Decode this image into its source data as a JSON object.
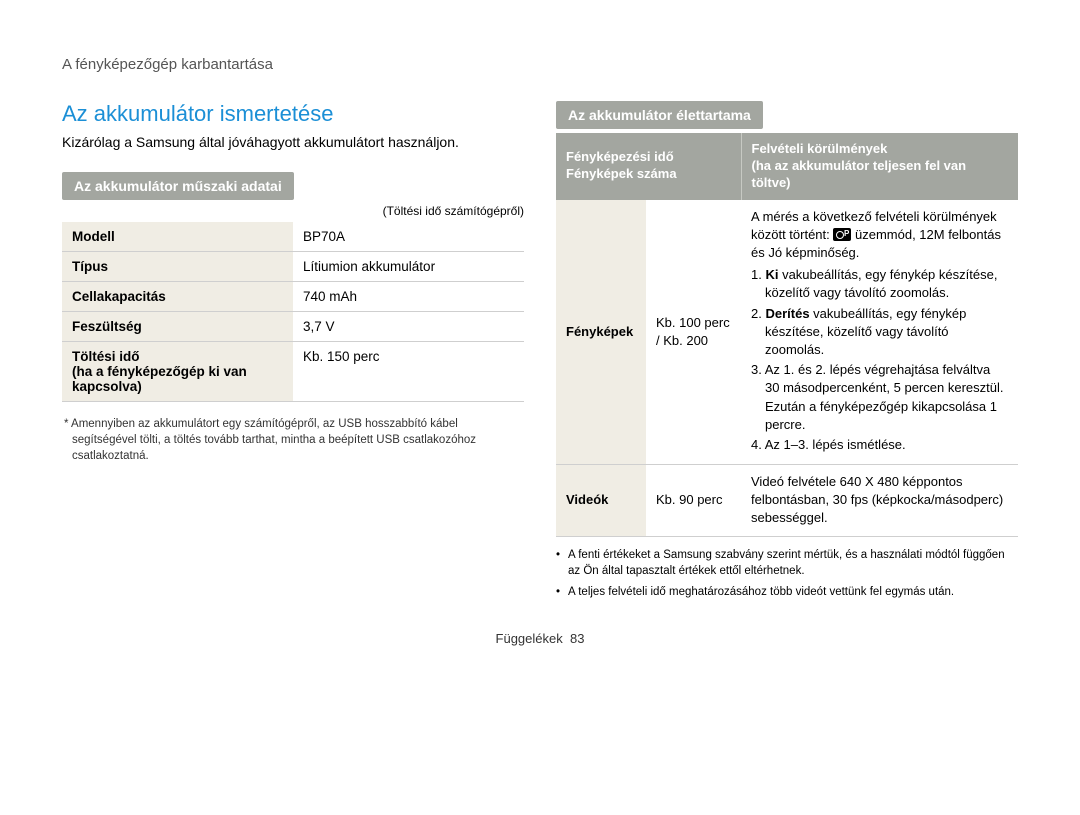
{
  "breadcrumb": "A fényképezőgép karbantartása",
  "left": {
    "title": "Az akkumulátor ismertetése",
    "lead": "Kizárólag a Samsung által jóváhagyott akkumulátort használjon.",
    "subhead": "Az akkumulátor műszaki adatai",
    "note_right": "(Töltési idő számítógépről)",
    "spec_rows": [
      {
        "label": "Modell",
        "value": "BP70A"
      },
      {
        "label": "Típus",
        "value": "Lítiumion akkumulátor"
      },
      {
        "label": "Cellakapacitás",
        "value": "740 mAh"
      },
      {
        "label": "Feszültség",
        "value": "3,7 V"
      },
      {
        "label": "Töltési idő\n(ha a fényképezőgép ki van kapcsolva)",
        "value": "Kb. 150 perc"
      }
    ],
    "footnote": "* Amennyiben az akkumulátort egy számítógépről, az USB hosszabbító kábel segítségével tölti, a töltés tovább tarthat, mintha a beépített USB csatlakozóhoz csatlakoztatná."
  },
  "right": {
    "subhead": "Az akkumulátor élettartama",
    "head_col1": "Fényképezési idő / Fényképek száma",
    "head_col2": "Felvételi körülmények\n(ha az akkumulátor teljesen fel van töltve)",
    "rows": {
      "photos": {
        "label": "Fényképek",
        "value": "Kb. 100 perc / Kb. 200",
        "cond_intro_a": "A mérés a következő felvételi körülmények között történt: ",
        "cond_intro_b": " üzemmód, 12M felbontás és Jó képminőség.",
        "steps": [
          "1. Ki vakubeállítás, egy fénykép készítése, közelítő vagy távolító zoomolás.",
          "2. Derítés vakubeállítás, egy fénykép készítése, közelítő vagy távolító zoomolás.",
          "3. Az 1. és 2. lépés végrehajtása felváltva 30 másodpercenként, 5 percen keresztül. Ezután a fényképezőgép kikapcsolása 1 percre.",
          "4. Az 1–3. lépés ismétlése."
        ],
        "bold1": "Ki",
        "bold2": "Derítés"
      },
      "videos": {
        "label": "Videók",
        "value": "Kb. 90 perc",
        "cond": "Videó felvétele 640 X 480 képpontos felbontásban, 30 fps (képkocka/másodperc) sebességgel."
      }
    },
    "bullets": [
      "A fenti értékeket a Samsung szabvány szerint mértük, és a használati módtól függően az Ön által tapasztalt értékek ettől eltérhetnek.",
      "A teljes felvételi idő meghatározásához több videót vettünk fel egymás után."
    ]
  },
  "footer": {
    "label": "Függelékek",
    "page": "83"
  }
}
